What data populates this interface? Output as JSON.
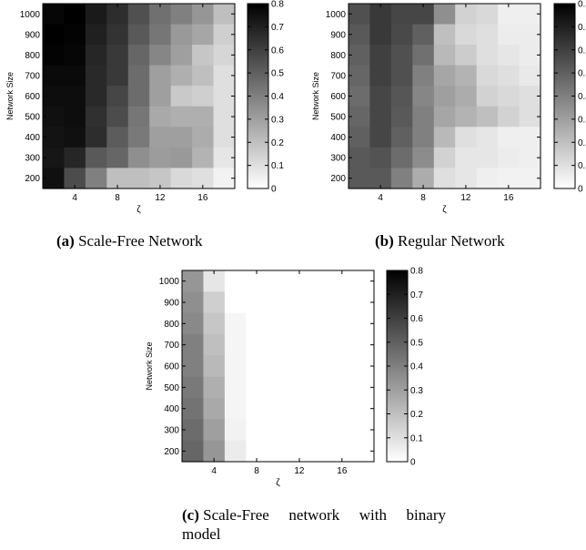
{
  "chart_data": [
    {
      "type": "heatmap",
      "panel": "(a)",
      "caption": "Scale-Free Network",
      "xlabel": "ζ",
      "ylabel": "Network Size",
      "x_ticks": [
        4,
        8,
        12,
        16
      ],
      "y_ticks": [
        200,
        300,
        400,
        500,
        600,
        700,
        800,
        900,
        1000
      ],
      "x": [
        2,
        4,
        6,
        8,
        10,
        12,
        14,
        16,
        18
      ],
      "y": [
        200,
        300,
        400,
        500,
        600,
        700,
        800,
        900,
        1000
      ],
      "colorbar": {
        "range": [
          0,
          0.8
        ],
        "ticks": [
          0,
          0.1,
          0.2,
          0.3,
          0.4,
          0.5,
          0.6,
          0.7,
          0.8
        ],
        "colormap": "gray reversed (0 = white, 0.8 = black)"
      },
      "values": [
        [
          0.78,
          0.8,
          0.72,
          0.66,
          0.55,
          0.45,
          0.4,
          0.33,
          0.2
        ],
        [
          0.8,
          0.79,
          0.7,
          0.64,
          0.52,
          0.43,
          0.32,
          0.28,
          0.15
        ],
        [
          0.79,
          0.78,
          0.68,
          0.62,
          0.48,
          0.38,
          0.3,
          0.18,
          0.13
        ],
        [
          0.77,
          0.77,
          0.67,
          0.62,
          0.46,
          0.3,
          0.25,
          0.2,
          0.1
        ],
        [
          0.76,
          0.76,
          0.67,
          0.58,
          0.46,
          0.3,
          0.17,
          0.15,
          0.1
        ],
        [
          0.75,
          0.76,
          0.65,
          0.56,
          0.43,
          0.27,
          0.25,
          0.25,
          0.1
        ],
        [
          0.74,
          0.75,
          0.66,
          0.51,
          0.42,
          0.3,
          0.3,
          0.26,
          0.1
        ],
        [
          0.73,
          0.68,
          0.52,
          0.48,
          0.35,
          0.31,
          0.32,
          0.24,
          0.08
        ],
        [
          0.75,
          0.56,
          0.4,
          0.2,
          0.2,
          0.18,
          0.12,
          0.1,
          0.04
        ]
      ]
    },
    {
      "type": "heatmap",
      "panel": "(b)",
      "caption": "Regular Network",
      "xlabel": "ζ",
      "ylabel": "Network Size",
      "x_ticks": [
        4,
        8,
        12,
        16
      ],
      "y_ticks": [
        200,
        300,
        400,
        500,
        600,
        700,
        800,
        900,
        1000
      ],
      "x": [
        2,
        4,
        6,
        8,
        10,
        12,
        14,
        16,
        18
      ],
      "y": [
        200,
        300,
        400,
        500,
        600,
        700,
        800,
        900,
        1000
      ],
      "colorbar": {
        "range": [
          0,
          0.8
        ],
        "ticks": [
          0,
          0.1,
          0.2,
          0.3,
          0.4,
          0.5,
          0.6,
          0.7,
          0.8
        ],
        "colormap": "gray reversed (0 = white, 0.8 = black)"
      },
      "values": [
        [
          0.55,
          0.62,
          0.58,
          0.58,
          0.35,
          0.14,
          0.12,
          0.05,
          0.05
        ],
        [
          0.52,
          0.62,
          0.57,
          0.5,
          0.2,
          0.12,
          0.1,
          0.06,
          0.06
        ],
        [
          0.5,
          0.6,
          0.55,
          0.45,
          0.22,
          0.16,
          0.1,
          0.08,
          0.06
        ],
        [
          0.48,
          0.6,
          0.55,
          0.4,
          0.28,
          0.24,
          0.12,
          0.1,
          0.07
        ],
        [
          0.46,
          0.58,
          0.53,
          0.38,
          0.3,
          0.26,
          0.14,
          0.12,
          0.1
        ],
        [
          0.48,
          0.58,
          0.52,
          0.4,
          0.28,
          0.24,
          0.2,
          0.14,
          0.1
        ],
        [
          0.5,
          0.58,
          0.5,
          0.4,
          0.22,
          0.1,
          0.08,
          0.05,
          0.05
        ],
        [
          0.52,
          0.54,
          0.46,
          0.36,
          0.14,
          0.08,
          0.08,
          0.06,
          0.05
        ],
        [
          0.52,
          0.52,
          0.4,
          0.26,
          0.1,
          0.08,
          0.05,
          0.04,
          0.04
        ]
      ]
    },
    {
      "type": "heatmap",
      "panel": "(c)",
      "caption": "Scale-Free network with binary model",
      "xlabel": "ζ",
      "ylabel": "Network Size",
      "x_ticks": [
        4,
        8,
        12,
        16
      ],
      "y_ticks": [
        200,
        300,
        400,
        500,
        600,
        700,
        800,
        900,
        1000
      ],
      "x": [
        2,
        4,
        6,
        8,
        10,
        12,
        14,
        16,
        18
      ],
      "y": [
        200,
        300,
        400,
        500,
        600,
        700,
        800,
        900,
        1000
      ],
      "colorbar": {
        "range": [
          0,
          0.8
        ],
        "ticks": [
          0,
          0.1,
          0.2,
          0.3,
          0.4,
          0.5,
          0.6,
          0.7,
          0.8
        ],
        "colormap": "gray reversed (0 = white, 0.8 = black)"
      },
      "values": [
        [
          0.33,
          0.08,
          0.0,
          0.0,
          0.0,
          0.0,
          0.0,
          0.0,
          0.0
        ],
        [
          0.35,
          0.15,
          0.0,
          0.0,
          0.0,
          0.0,
          0.0,
          0.0,
          0.0
        ],
        [
          0.37,
          0.18,
          0.03,
          0.0,
          0.0,
          0.0,
          0.0,
          0.0,
          0.0
        ],
        [
          0.4,
          0.2,
          0.03,
          0.0,
          0.0,
          0.0,
          0.0,
          0.0,
          0.0
        ],
        [
          0.4,
          0.22,
          0.03,
          0.0,
          0.0,
          0.0,
          0.0,
          0.0,
          0.0
        ],
        [
          0.42,
          0.25,
          0.03,
          0.0,
          0.0,
          0.0,
          0.0,
          0.0,
          0.0
        ],
        [
          0.44,
          0.27,
          0.03,
          0.0,
          0.0,
          0.0,
          0.0,
          0.0,
          0.0
        ],
        [
          0.46,
          0.3,
          0.04,
          0.0,
          0.0,
          0.0,
          0.0,
          0.0,
          0.0
        ],
        [
          0.48,
          0.33,
          0.06,
          0.0,
          0.0,
          0.0,
          0.0,
          0.0,
          0.0
        ]
      ]
    }
  ],
  "captions": {
    "a": {
      "label": "(a)",
      "text": "Scale-Free Network"
    },
    "b": {
      "label": "(b)",
      "text": "Regular Network"
    },
    "c": {
      "label": "(c)",
      "text_line1": [
        "Scale-Free",
        "network",
        "with",
        "binary"
      ],
      "text_line2": "model"
    }
  }
}
